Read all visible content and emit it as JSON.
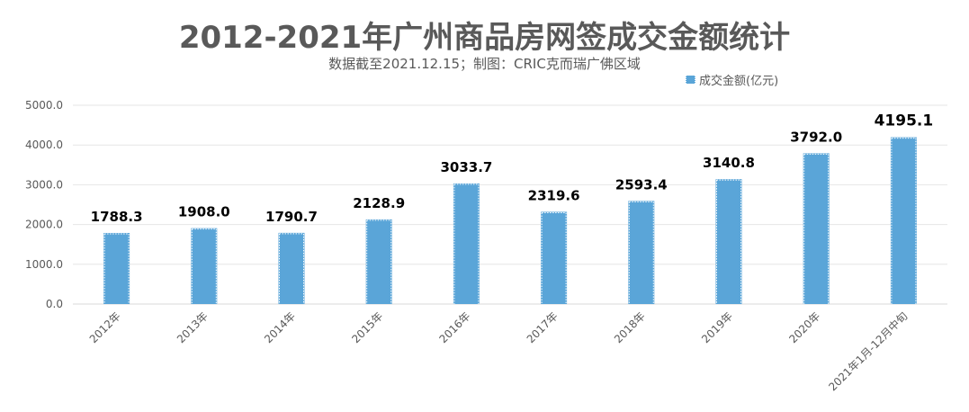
{
  "title": "2012-2021年广州商品房网签成交金额统计",
  "subtitle": "数据截至2021.12.15；制图：CRIC克而瑞广佛区域",
  "colors": {
    "bar": "#5aa5d8",
    "text": "#595959",
    "grid": "#e6e6e6"
  },
  "chart_data": {
    "type": "bar",
    "categories": [
      "2012年",
      "2013年",
      "2014年",
      "2015年",
      "2016年",
      "2017年",
      "2018年",
      "2019年",
      "2020年",
      "2021年1月-12月中旬"
    ],
    "series": [
      {
        "name": "成交金额(亿元)",
        "values": [
          1788.3,
          1908.0,
          1790.7,
          2128.9,
          3033.7,
          2319.6,
          2593.4,
          3140.8,
          3792.0,
          4195.1
        ]
      }
    ],
    "value_labels": [
      "1788.3",
      "1908.0",
      "1790.7",
      "2128.9",
      "3033.7",
      "2319.6",
      "2593.4",
      "3140.8",
      "3792.0",
      "4195.1"
    ],
    "yticks": [
      0,
      1000,
      2000,
      3000,
      4000,
      5000
    ],
    "ytick_labels": [
      "0.0",
      "1000.0",
      "2000.0",
      "3000.0",
      "4000.0",
      "5000.0"
    ],
    "ylim": [
      0,
      5000
    ],
    "grid": true,
    "legend_position": "top-right"
  }
}
